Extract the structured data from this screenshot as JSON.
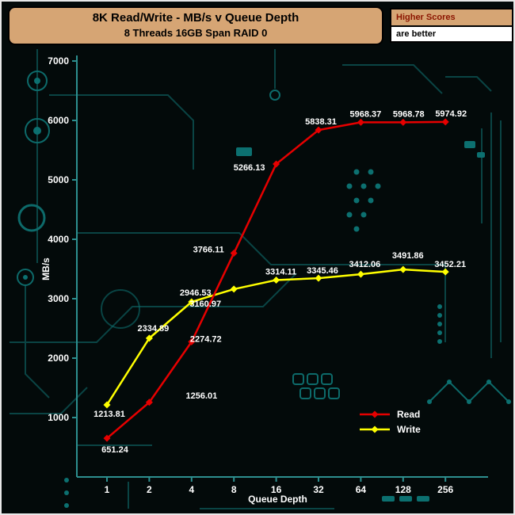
{
  "header": {
    "title": "8K Read/Write - MB/s v Queue Depth",
    "subtitle": "8 Threads 16GB Span RAID 0",
    "note_title": "Higher Scores",
    "note_body": "are better"
  },
  "chart_data": {
    "type": "line",
    "title": "8K Read/Write - MB/s v Queue Depth",
    "subtitle": "8 Threads 16GB Span RAID 0",
    "categories": [
      "1",
      "2",
      "4",
      "8",
      "16",
      "32",
      "64",
      "128",
      "256"
    ],
    "series": [
      {
        "name": "Read",
        "color": "#e60000",
        "values": [
          651.24,
          1256.01,
          2274.72,
          3766.11,
          5266.13,
          5838.31,
          5968.37,
          5968.78,
          5974.92
        ]
      },
      {
        "name": "Write",
        "color": "#ffff00",
        "values": [
          1213.81,
          2334.89,
          2946.53,
          3160.97,
          3314.11,
          3345.46,
          3412.06,
          3491.86,
          3452.21
        ]
      }
    ],
    "xlabel": "Queue Depth",
    "ylabel": "MB/s",
    "ylim": [
      0,
      7000
    ],
    "yticks": [
      1000,
      2000,
      3000,
      4000,
      5000,
      6000,
      7000
    ],
    "grid": false,
    "legend_position": "inside-bottom-right",
    "marker": "diamond"
  },
  "colors": {
    "background": "#030a0a",
    "axis": "#2d8f8f",
    "title_box_bg": "#d6a574",
    "note_title_text": "#8b1500",
    "read_line": "#e60000",
    "write_line": "#ffff00",
    "text": "#ffffff"
  }
}
